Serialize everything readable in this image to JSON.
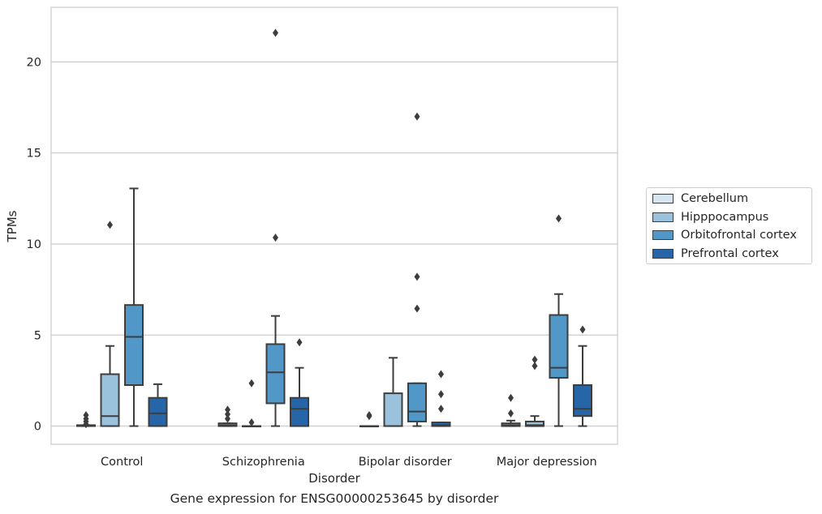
{
  "chart_data": {
    "type": "box",
    "title": "",
    "xlabel": "Disorder",
    "ylabel": "TPMs",
    "caption": "Gene expression for ENSG00000253645 by disorder",
    "ylim": [
      -1,
      23
    ],
    "yticks": [
      0,
      5,
      10,
      15,
      20
    ],
    "grid": "horizontal",
    "legend_position": "right",
    "categories": [
      "Control",
      "Schizophrenia",
      "Bipolar disorder",
      "Major depression"
    ],
    "series": [
      {
        "name": "Cerebellum",
        "color": "#d7e5f2",
        "boxes": [
          {
            "whislo": 0.0,
            "q1": 0.0,
            "med": 0.0,
            "q3": 0.05,
            "whishi": 0.05,
            "fliers": [
              0.1,
              0.25,
              0.4,
              0.6
            ]
          },
          {
            "whislo": 0.0,
            "q1": 0.0,
            "med": 0.05,
            "q3": 0.15,
            "whishi": 0.15,
            "fliers": [
              0.4,
              0.65,
              0.9
            ]
          },
          {
            "whislo": 0.0,
            "q1": 0.0,
            "med": 0.0,
            "q3": 0.0,
            "whishi": 0.0,
            "fliers": [
              0.55,
              0.6
            ]
          },
          {
            "whislo": 0.0,
            "q1": 0.0,
            "med": 0.05,
            "q3": 0.15,
            "whishi": 0.3,
            "fliers": [
              0.7,
              1.55
            ]
          }
        ]
      },
      {
        "name": "Hipppocampus",
        "color": "#9ac2dc",
        "boxes": [
          {
            "whislo": 0.0,
            "q1": 0.0,
            "med": 0.55,
            "q3": 2.85,
            "whishi": 4.4,
            "fliers": [
              11.05
            ]
          },
          {
            "whislo": 0.0,
            "q1": 0.0,
            "med": 0.0,
            "q3": 0.0,
            "whishi": 0.0,
            "fliers": [
              0.2,
              2.35
            ]
          },
          {
            "whislo": 0.0,
            "q1": 0.0,
            "med": 0.0,
            "q3": 1.8,
            "whishi": 3.75,
            "fliers": []
          },
          {
            "whislo": 0.0,
            "q1": 0.0,
            "med": 0.05,
            "q3": 0.25,
            "whishi": 0.55,
            "fliers": [
              3.3,
              3.65
            ]
          }
        ]
      },
      {
        "name": "Orbitofrontal cortex",
        "color": "#5198c8",
        "boxes": [
          {
            "whislo": 0.0,
            "q1": 2.25,
            "med": 4.9,
            "q3": 6.65,
            "whishi": 13.05,
            "fliers": []
          },
          {
            "whislo": 0.0,
            "q1": 1.25,
            "med": 2.95,
            "q3": 4.5,
            "whishi": 6.05,
            "fliers": [
              10.35,
              21.6
            ]
          },
          {
            "whislo": 0.0,
            "q1": 0.25,
            "med": 0.8,
            "q3": 2.35,
            "whishi": 2.35,
            "fliers": [
              6.45,
              8.2,
              17.0
            ]
          },
          {
            "whislo": 0.0,
            "q1": 2.65,
            "med": 3.2,
            "q3": 6.1,
            "whishi": 7.25,
            "fliers": [
              11.4
            ]
          }
        ]
      },
      {
        "name": "Prefrontal cortex",
        "color": "#2666a8",
        "boxes": [
          {
            "whislo": 0.0,
            "q1": 0.0,
            "med": 0.7,
            "q3": 1.55,
            "whishi": 2.3,
            "fliers": []
          },
          {
            "whislo": 0.0,
            "q1": 0.0,
            "med": 0.95,
            "q3": 1.55,
            "whishi": 3.2,
            "fliers": [
              4.6
            ]
          },
          {
            "whislo": 0.0,
            "q1": 0.0,
            "med": 0.05,
            "q3": 0.2,
            "whishi": 0.2,
            "fliers": [
              0.95,
              1.75,
              2.85
            ]
          },
          {
            "whislo": 0.0,
            "q1": 0.55,
            "med": 0.95,
            "q3": 2.25,
            "whishi": 4.4,
            "fliers": [
              5.3
            ]
          }
        ]
      }
    ]
  }
}
